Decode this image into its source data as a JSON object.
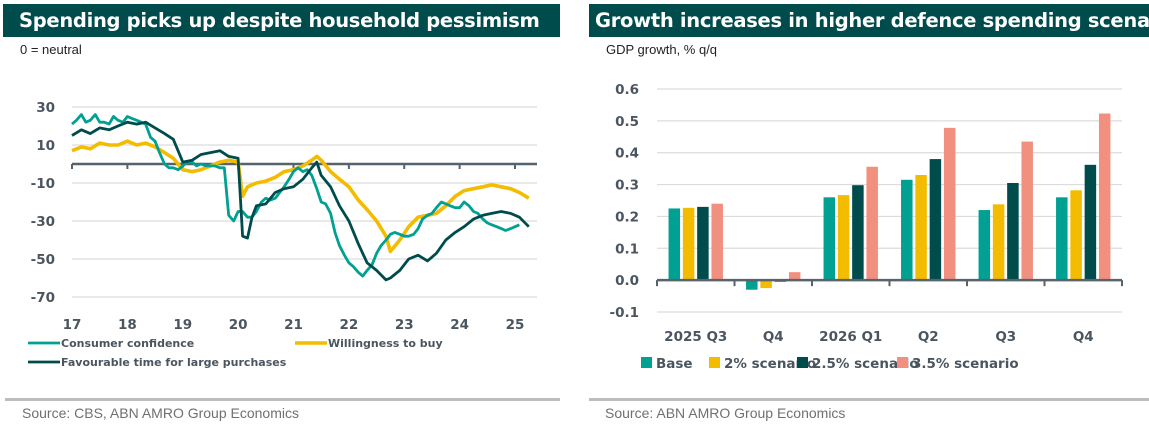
{
  "chart_data": [
    {
      "type": "line",
      "title": "Spending picks up despite household pessimism",
      "subtitle": "0 = neutral",
      "xlabel": "",
      "ylabel": "",
      "x_ticks": [
        "17",
        "18",
        "19",
        "20",
        "21",
        "22",
        "23",
        "24",
        "25"
      ],
      "x_range": [
        2017.0,
        2025.25
      ],
      "y_ticks": [
        30,
        10,
        -10,
        -30,
        -50,
        -70
      ],
      "ylim": [
        -75,
        35
      ],
      "grid": true,
      "legend_position": "bottom",
      "series": [
        {
          "name": "Consumer confidence",
          "color": "#00a092",
          "x": [
            2017.0,
            2017.08,
            2017.17,
            2017.25,
            2017.33,
            2017.42,
            2017.5,
            2017.58,
            2017.67,
            2017.75,
            2017.83,
            2017.92,
            2018.0,
            2018.08,
            2018.17,
            2018.25,
            2018.33,
            2018.42,
            2018.5,
            2018.58,
            2018.67,
            2018.75,
            2018.83,
            2018.92,
            2019.0,
            2019.08,
            2019.17,
            2019.25,
            2019.33,
            2019.42,
            2019.5,
            2019.58,
            2019.67,
            2019.75,
            2019.83,
            2019.92,
            2020.0,
            2020.08,
            2020.17,
            2020.25,
            2020.33,
            2020.42,
            2020.5,
            2020.58,
            2020.67,
            2020.75,
            2020.83,
            2020.92,
            2021.0,
            2021.08,
            2021.17,
            2021.25,
            2021.33,
            2021.42,
            2021.5,
            2021.58,
            2021.67,
            2021.75,
            2021.83,
            2021.92,
            2022.0,
            2022.08,
            2022.17,
            2022.25,
            2022.33,
            2022.42,
            2022.5,
            2022.58,
            2022.67,
            2022.75,
            2022.83,
            2022.92,
            2023.0,
            2023.08,
            2023.17,
            2023.25,
            2023.33,
            2023.42,
            2023.5,
            2023.58,
            2023.67,
            2023.75,
            2023.83,
            2023.92,
            2024.0,
            2024.08,
            2024.17,
            2024.25,
            2024.33,
            2024.42,
            2024.5,
            2024.58,
            2024.67,
            2024.75,
            2024.83,
            2024.92,
            2025.0,
            2025.08
          ],
          "y": [
            21,
            23,
            26,
            22,
            23,
            26,
            22,
            22,
            21,
            25,
            23,
            22,
            25,
            24,
            23,
            22,
            21,
            14,
            12,
            6,
            0,
            -2,
            -2,
            -3,
            -1,
            1,
            1,
            -1,
            0,
            -1,
            -1,
            -1,
            -2,
            -2,
            -27,
            -30,
            -25,
            -25,
            -28,
            -28,
            -25,
            -20,
            -18,
            -19,
            -18,
            -15,
            -12,
            -8,
            -4,
            -2,
            -4,
            -3,
            -6,
            -13,
            -20,
            -21,
            -26,
            -36,
            -43,
            -48,
            -52,
            -54,
            -57,
            -59,
            -56,
            -53,
            -47,
            -43,
            -40,
            -37,
            -36,
            -37,
            -38,
            -38,
            -37,
            -34,
            -29,
            -27,
            -26,
            -23,
            -20,
            -21,
            -22,
            -23,
            -23,
            -20,
            -22,
            -25,
            -26,
            -29,
            -31,
            -32,
            -33,
            -34,
            -35,
            -34,
            -33,
            -32
          ],
          "note": "values approximate, monthly series digitized from chart"
        },
        {
          "name": "Willingness to buy",
          "color": "#f3bc00",
          "note": "approximate monthly values",
          "x": [
            2017.0,
            2017.17,
            2017.33,
            2017.5,
            2017.67,
            2017.83,
            2018.0,
            2018.17,
            2018.33,
            2018.5,
            2018.67,
            2018.83,
            2019.0,
            2019.17,
            2019.33,
            2019.5,
            2019.67,
            2019.83,
            2020.0,
            2020.08,
            2020.17,
            2020.33,
            2020.5,
            2020.67,
            2020.83,
            2021.0,
            2021.17,
            2021.33,
            2021.42,
            2021.5,
            2021.67,
            2021.83,
            2022.0,
            2022.17,
            2022.33,
            2022.5,
            2022.67,
            2022.75,
            2022.92,
            2023.08,
            2023.25,
            2023.42,
            2023.58,
            2023.75,
            2023.92,
            2024.08,
            2024.25,
            2024.42,
            2024.58,
            2024.75,
            2024.92,
            2025.08,
            2025.25
          ],
          "y": [
            7,
            9,
            8,
            11,
            10,
            10,
            12,
            10,
            11,
            9,
            6,
            3,
            -3,
            -4,
            -3,
            -1,
            1,
            2,
            1,
            -17,
            -12,
            -10,
            -9,
            -7,
            -4,
            -3,
            -1,
            2,
            4,
            2,
            -4,
            -8,
            -12,
            -19,
            -24,
            -30,
            -38,
            -46,
            -40,
            -33,
            -28,
            -27,
            -26,
            -22,
            -17,
            -14,
            -13,
            -12,
            -11,
            -12,
            -13,
            -15,
            -18
          ]
        },
        {
          "name": "Favourable time for large purchases",
          "color": "#004c4c",
          "note": "approximate monthly values",
          "x": [
            2017.0,
            2017.17,
            2017.33,
            2017.5,
            2017.67,
            2017.83,
            2018.0,
            2018.17,
            2018.33,
            2018.5,
            2018.67,
            2018.83,
            2019.0,
            2019.17,
            2019.33,
            2019.5,
            2019.67,
            2019.83,
            2020.0,
            2020.08,
            2020.17,
            2020.25,
            2020.33,
            2020.5,
            2020.67,
            2020.83,
            2021.0,
            2021.17,
            2021.33,
            2021.42,
            2021.5,
            2021.67,
            2021.83,
            2022.0,
            2022.17,
            2022.33,
            2022.5,
            2022.67,
            2022.75,
            2022.92,
            2023.08,
            2023.25,
            2023.42,
            2023.58,
            2023.75,
            2023.92,
            2024.08,
            2024.25,
            2024.42,
            2024.58,
            2024.75,
            2024.92,
            2025.08,
            2025.25
          ],
          "y": [
            15,
            18,
            16,
            19,
            18,
            20,
            22,
            21,
            22,
            19,
            16,
            13,
            1,
            2,
            5,
            6,
            7,
            4,
            3,
            -38,
            -39,
            -28,
            -22,
            -21,
            -15,
            -13,
            -12,
            -8,
            -2,
            1,
            -6,
            -12,
            -22,
            -30,
            -42,
            -52,
            -56,
            -61,
            -60,
            -56,
            -50,
            -48,
            -51,
            -47,
            -40,
            -36,
            -33,
            -29,
            -27,
            -26,
            -25,
            -26,
            -28,
            -33
          ]
        }
      ]
    },
    {
      "type": "bar",
      "title": "Growth increases in higher defence spending scenarios",
      "subtitle": "GDP growth, % q/q",
      "xlabel": "",
      "ylabel": "",
      "categories": [
        "2025 Q3",
        "Q4",
        "2026 Q1",
        "Q2",
        "Q3",
        "Q4"
      ],
      "y_ticks": [
        "0.6",
        "0.5",
        "0.4",
        "0.3",
        "0.2",
        "0.1",
        "0.0",
        "-0.1"
      ],
      "ylim": [
        -0.1,
        0.6
      ],
      "grid": true,
      "legend_position": "bottom",
      "series": [
        {
          "name": "Base",
          "color": "#00a092",
          "values": [
            0.225,
            -0.03,
            0.26,
            0.315,
            0.22,
            0.26
          ]
        },
        {
          "name": "2% scenario",
          "color": "#f3bc00",
          "values": [
            0.227,
            -0.025,
            0.267,
            0.33,
            0.238,
            0.282
          ]
        },
        {
          "name": "2.5% scenario",
          "color": "#004c4c",
          "values": [
            0.23,
            -0.005,
            0.298,
            0.38,
            0.305,
            0.362
          ]
        },
        {
          "name": "3.5% scenario",
          "color": "#f29080",
          "values": [
            0.24,
            0.025,
            0.356,
            0.478,
            0.435,
            0.523
          ]
        }
      ]
    }
  ],
  "left": {
    "source": "Source: CBS, ABN AMRO Group Economics"
  },
  "right": {
    "source": "Source: ABN AMRO Group Economics"
  }
}
